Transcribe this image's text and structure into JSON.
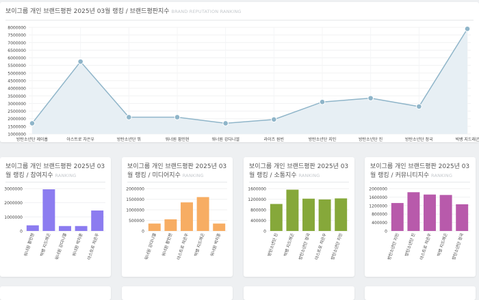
{
  "main_card": {
    "title": "보이그룹 개인 브랜드평판 2025년 03월 랭킹 / 브랜드평판지수",
    "subtitle": "BRAND REPUTATION RANKING"
  },
  "colors": {
    "line": "#8fb5c9",
    "area": "#e7eff4",
    "participation": "#8c7cf0",
    "media": "#f7ad63",
    "communication": "#86a83a",
    "community": "#b85aab"
  },
  "chart_data": [
    {
      "type": "area",
      "categories": [
        "방탄소년단 제이홉",
        "아스트로 차은우",
        "방탄소년단 뷔",
        "워너원 황민현",
        "워너원 강다니엘",
        "라이즈 원빈",
        "방탄소년단 지민",
        "방탄소년단 진",
        "방탄소년단 정국",
        "빅뱅 지드래곤"
      ],
      "values": [
        1700000,
        5750000,
        2100000,
        2100000,
        1700000,
        1950000,
        3100000,
        3350000,
        2800000,
        7900000
      ],
      "ylim": [
        1000000,
        8000000
      ],
      "yticks": [
        1000000,
        1500000,
        2000000,
        2500000,
        3000000,
        3500000,
        4000000,
        4500000,
        5000000,
        5500000,
        6000000,
        6500000,
        7000000,
        7500000,
        8000000
      ],
      "grid": true
    },
    {
      "type": "bar",
      "title": "보이그룹 개인 브랜드평판 2025년 03월 랭킹 / 참여지수",
      "subtitle": "RANKING",
      "categories": [
        "워너원 황민현",
        "빅뱅 지드래곤",
        "워너원 강다니엘",
        "워너원 박지훈",
        "아스트로 차은우"
      ],
      "values": [
        400000,
        2950000,
        350000,
        350000,
        1450000
      ],
      "ylim": [
        0,
        3000000
      ],
      "yticks": [
        0,
        1000000,
        2000000,
        3000000
      ]
    },
    {
      "type": "bar",
      "title": "보이그룹 개인 브랜드평판 2025년 03월 랭킹 / 미디어지수",
      "subtitle": "RANKING",
      "categories": [
        "워너원 강다니엘",
        "워너원 황민현",
        "아스트로 차은우",
        "빅뱅 지드래곤",
        "워너원 박지훈"
      ],
      "values": [
        350000,
        550000,
        1350000,
        1600000,
        350000
      ],
      "ylim": [
        0,
        2000000
      ],
      "yticks": [
        0,
        500000,
        1000000,
        1500000,
        2000000
      ]
    },
    {
      "type": "bar",
      "title": "보이그룹 개인 브랜드평판 2025년 03월 랭킹 / 소통지수",
      "subtitle": "RANKING",
      "categories": [
        "방탄소년단 진",
        "빅뱅 지드래곤",
        "방탄소년단 정국",
        "아스트로 차은우",
        "방탄소년단 지민"
      ],
      "values": [
        1020000,
        1560000,
        1220000,
        1190000,
        1230000
      ],
      "ylim": [
        0,
        1600000
      ],
      "yticks": [
        0,
        400000,
        800000,
        1200000,
        1600000
      ]
    },
    {
      "type": "bar",
      "title": "보이그룹 개인 브랜드평판 2025년 03월 랭킹 / 커뮤니티지수",
      "subtitle": "RANKING",
      "categories": [
        "방탄소년단 지민",
        "방탄소년단 진",
        "아스트로 차은우",
        "빅뱅 지드래곤",
        "방탄소년단 정국"
      ],
      "values": [
        1320000,
        1830000,
        1720000,
        1700000,
        1260000
      ],
      "ylim": [
        0,
        2000000
      ],
      "yticks": [
        0,
        400000,
        800000,
        1200000,
        1600000,
        2000000
      ]
    }
  ]
}
